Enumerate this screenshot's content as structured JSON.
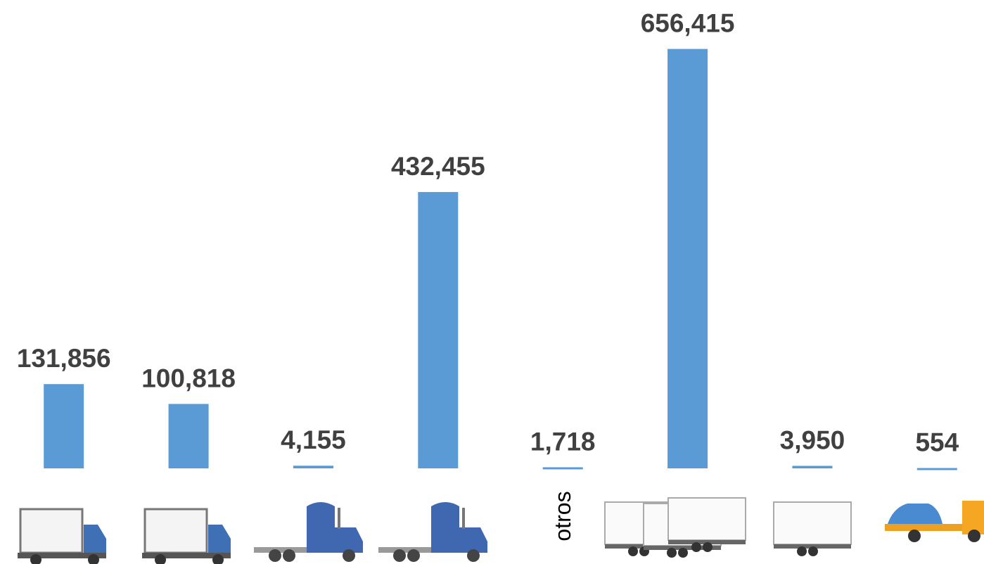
{
  "chart_data": {
    "type": "bar",
    "categories": [
      null,
      null,
      null,
      null,
      "otros",
      null,
      null,
      null
    ],
    "values": [
      131856,
      100818,
      4155,
      432455,
      1718,
      656415,
      3950,
      554
    ],
    "value_labels": [
      "131,856",
      "100,818",
      "4,155",
      "432,455",
      "1,718",
      "656,415",
      "3,950",
      "554"
    ],
    "color": "#5b9bd5",
    "ylim": [
      0,
      733000
    ]
  }
}
